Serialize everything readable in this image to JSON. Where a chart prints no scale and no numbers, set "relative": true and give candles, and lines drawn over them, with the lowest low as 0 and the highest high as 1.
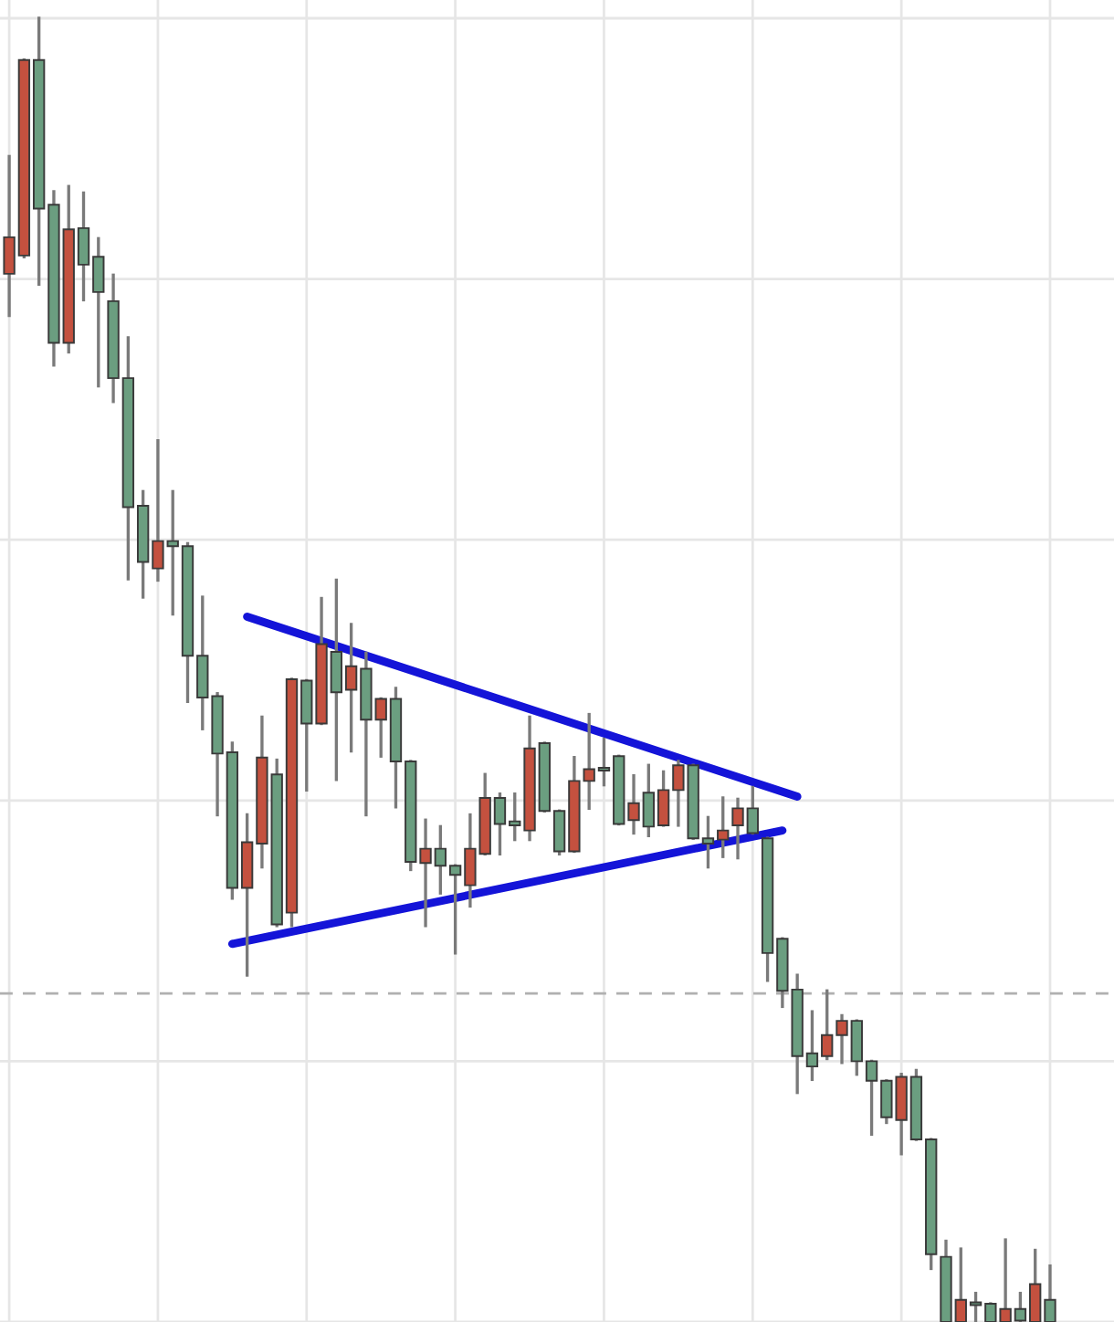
{
  "chart_data": {
    "type": "candlestick",
    "relative": true,
    "grid": true,
    "categories": [
      null,
      null,
      null,
      null,
      null,
      null,
      null,
      null,
      null,
      null,
      null,
      null,
      null,
      null,
      null,
      null,
      null,
      null,
      null,
      null,
      null,
      null,
      null,
      null,
      null,
      null,
      null,
      null,
      null,
      null,
      null,
      null,
      null,
      null,
      null,
      null,
      null,
      null,
      null,
      null,
      null,
      null,
      null,
      null,
      null,
      null,
      null,
      null,
      null,
      null,
      null,
      null,
      null,
      null,
      null,
      null,
      null,
      null,
      null,
      null,
      null,
      null,
      null,
      null,
      null,
      null,
      null,
      null,
      null,
      null,
      null
    ],
    "ohlc": [
      [
        0.804,
        0.894,
        0.772,
        0.832
      ],
      [
        0.818,
        0.968,
        0.817,
        0.968
      ],
      [
        0.968,
        1.0,
        0.796,
        0.854
      ],
      [
        0.857,
        0.867,
        0.734,
        0.751
      ],
      [
        0.751,
        0.871,
        0.744,
        0.838
      ],
      [
        0.839,
        0.866,
        0.784,
        0.811
      ],
      [
        0.817,
        0.831,
        0.718,
        0.79
      ],
      [
        0.783,
        0.803,
        0.706,
        0.724
      ],
      [
        0.724,
        0.755,
        0.57,
        0.625
      ],
      [
        0.626,
        0.637,
        0.556,
        0.583
      ],
      [
        0.578,
        0.676,
        0.569,
        0.599
      ],
      [
        0.599,
        0.637,
        0.543,
        0.595
      ],
      [
        0.595,
        0.597,
        0.476,
        0.511
      ],
      [
        0.511,
        0.556,
        0.455,
        0.479
      ],
      [
        0.48,
        0.482,
        0.389,
        0.436
      ],
      [
        0.437,
        0.444,
        0.325,
        0.333
      ],
      [
        0.333,
        0.389,
        0.266,
        0.368
      ],
      [
        0.367,
        0.464,
        0.349,
        0.433
      ],
      [
        0.42,
        0.431,
        0.304,
        0.305
      ],
      [
        0.314,
        0.493,
        0.304,
        0.493
      ],
      [
        0.492,
        0.492,
        0.408,
        0.459
      ],
      [
        0.459,
        0.555,
        0.459,
        0.52
      ],
      [
        0.514,
        0.569,
        0.416,
        0.483
      ],
      [
        0.485,
        0.535,
        0.438,
        0.503
      ],
      [
        0.501,
        0.513,
        0.389,
        0.462
      ],
      [
        0.462,
        0.478,
        0.434,
        0.478
      ],
      [
        0.478,
        0.486,
        0.395,
        0.43
      ],
      [
        0.43,
        0.43,
        0.347,
        0.353
      ],
      [
        0.352,
        0.385,
        0.304,
        0.363
      ],
      [
        0.363,
        0.38,
        0.329,
        0.35
      ],
      [
        0.35,
        0.35,
        0.283,
        0.343
      ],
      [
        0.335,
        0.389,
        0.319,
        0.363
      ],
      [
        0.359,
        0.42,
        0.359,
        0.402
      ],
      [
        0.402,
        0.405,
        0.359,
        0.382
      ],
      [
        0.384,
        0.405,
        0.37,
        0.381
      ],
      [
        0.377,
        0.464,
        0.37,
        0.44
      ],
      [
        0.444,
        0.444,
        0.392,
        0.392
      ],
      [
        0.392,
        0.392,
        0.359,
        0.361
      ],
      [
        0.361,
        0.433,
        0.361,
        0.415
      ],
      [
        0.415,
        0.466,
        0.394,
        0.424
      ],
      [
        0.424,
        0.447,
        0.412,
        0.423
      ],
      [
        0.434,
        0.434,
        0.382,
        0.382
      ],
      [
        0.385,
        0.419,
        0.375,
        0.398
      ],
      [
        0.406,
        0.427,
        0.373,
        0.38
      ],
      [
        0.381,
        0.422,
        0.381,
        0.408
      ],
      [
        0.408,
        0.43,
        0.381,
        0.427
      ],
      [
        0.427,
        0.427,
        0.371,
        0.371
      ],
      [
        0.371,
        0.387,
        0.349,
        0.367
      ],
      [
        0.37,
        0.402,
        0.357,
        0.377
      ],
      [
        0.381,
        0.401,
        0.356,
        0.394
      ],
      [
        0.394,
        0.41,
        0.375,
        0.375
      ],
      [
        0.371,
        0.371,
        0.262,
        0.283
      ],
      [
        0.294,
        0.294,
        0.242,
        0.254
      ],
      [
        0.255,
        0.266,
        0.176,
        0.204
      ],
      [
        0.206,
        0.238,
        0.186,
        0.196
      ],
      [
        0.204,
        0.254,
        0.202,
        0.22
      ],
      [
        0.22,
        0.235,
        0.199,
        0.231
      ],
      [
        0.231,
        0.231,
        0.19,
        0.2
      ],
      [
        0.2,
        0.2,
        0.144,
        0.185
      ],
      [
        0.185,
        0.185,
        0.153,
        0.157
      ],
      [
        0.155,
        0.19,
        0.129,
        0.188
      ],
      [
        0.188,
        0.193,
        0.14,
        0.14
      ],
      [
        0.14,
        0.14,
        0.041,
        0.052
      ],
      [
        0.05,
        0.062,
        0.0,
        0.0
      ],
      [
        0.0,
        0.056,
        0.0,
        0.017
      ],
      [
        0.014,
        0.022,
        0.0,
        0.013
      ],
      [
        0.014,
        0.014,
        0.0,
        0.0
      ],
      [
        0.0,
        0.063,
        0.0,
        0.01
      ],
      [
        0.01,
        0.022,
        0.0,
        0.001
      ],
      [
        0.0,
        0.055,
        0.0,
        0.029
      ],
      [
        0.017,
        0.043,
        0.0,
        0.0
      ]
    ],
    "colors": [
      "#c4513f",
      "#c4513f",
      "#6b9e80",
      "#6b9e80",
      "#c4513f",
      "#6b9e80",
      "#6b9e80",
      "#6b9e80",
      "#6b9e80",
      "#6b9e80",
      "#c4513f",
      "#6b9e80",
      "#6b9e80",
      "#6b9e80",
      "#6b9e80",
      "#6b9e80",
      "#c4513f",
      "#c4513f",
      "#6b9e80",
      "#c4513f",
      "#6b9e80",
      "#c4513f",
      "#6b9e80",
      "#c4513f",
      "#6b9e80",
      "#c4513f",
      "#6b9e80",
      "#6b9e80",
      "#c4513f",
      "#6b9e80",
      "#6b9e80",
      "#c4513f",
      "#c4513f",
      "#6b9e80",
      "#6b9e80",
      "#c4513f",
      "#6b9e80",
      "#6b9e80",
      "#c4513f",
      "#c4513f",
      "#6b9e80",
      "#6b9e80",
      "#c4513f",
      "#6b9e80",
      "#c4513f",
      "#c4513f",
      "#6b9e80",
      "#6b9e80",
      "#c4513f",
      "#c4513f",
      "#6b9e80",
      "#6b9e80",
      "#6b9e80",
      "#6b9e80",
      "#6b9e80",
      "#c4513f",
      "#c4513f",
      "#6b9e80",
      "#6b9e80",
      "#6b9e80",
      "#c4513f",
      "#6b9e80",
      "#6b9e80",
      "#6b9e80",
      "#c4513f",
      "#6b9e80",
      "#6b9e80",
      "#c4513f",
      "#6b9e80",
      "#c4513f",
      "#6b9e80"
    ],
    "series": [
      {
        "type": "line",
        "color": "#1414d8",
        "values": [
          null,
          null,
          null,
          null,
          null,
          null,
          null,
          null,
          null,
          null,
          null,
          null,
          null,
          null,
          null,
          null,
          0.541,
          null,
          null,
          null,
          null,
          null,
          null,
          null,
          null,
          null,
          null,
          null,
          null,
          null,
          null,
          null,
          null,
          null,
          null,
          null,
          null,
          null,
          null,
          null,
          null,
          null,
          null,
          null,
          null,
          null,
          null,
          null,
          null,
          null,
          null,
          null,
          null,
          0.403,
          null,
          null,
          null,
          null,
          null,
          null,
          null,
          null,
          null,
          null,
          null,
          null,
          null,
          null,
          null,
          null,
          null
        ]
      },
      {
        "type": "line",
        "color": "#1414d8",
        "values": [
          null,
          null,
          null,
          null,
          null,
          null,
          null,
          null,
          null,
          null,
          null,
          null,
          null,
          null,
          null,
          0.29,
          null,
          null,
          null,
          null,
          null,
          null,
          null,
          null,
          null,
          null,
          null,
          null,
          null,
          null,
          null,
          null,
          null,
          null,
          null,
          null,
          null,
          null,
          null,
          null,
          null,
          null,
          null,
          null,
          null,
          null,
          null,
          null,
          null,
          null,
          null,
          null,
          0.377,
          null,
          null,
          null,
          null,
          null,
          null,
          null,
          null,
          null,
          null,
          null,
          null,
          null,
          null,
          null,
          null,
          null,
          null
        ]
      }
    ],
    "ref_lines": [
      {
        "axis": "y",
        "value": 0.252,
        "color": "#b0b0b0",
        "line_style": "dashed"
      }
    ]
  }
}
